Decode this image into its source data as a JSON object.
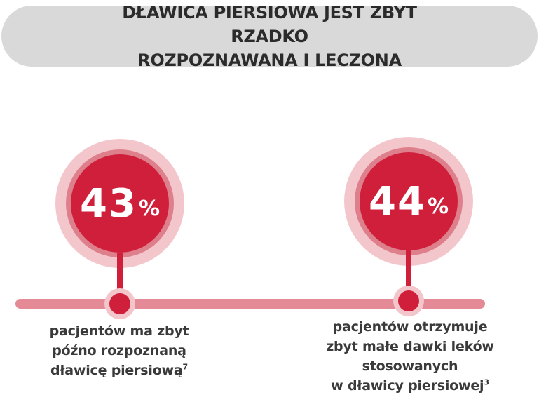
{
  "title": {
    "line1": "DŁAWICA PIERSIOWA JEST ZBYT RZADKO",
    "line2": "ROZPOZNAWANA I LECZONA"
  },
  "stats": [
    {
      "value": "43",
      "unit": "%",
      "caption_lines": [
        "pacjentów ma zbyt",
        "późno rozpoznaną",
        "dławicę piersiową"
      ],
      "footnote": "7"
    },
    {
      "value": "44",
      "unit": "%",
      "caption_lines": [
        "pacjentów otrzymuje",
        "zbyt małe dawki leków",
        "stosowanych",
        "w dławicy piersiowej"
      ],
      "footnote": "3"
    }
  ],
  "colors": {
    "accent": "#cf1f3b",
    "halo_light": "#f3c6cc",
    "halo_mid": "#de7f8c",
    "bar": "#e48a96",
    "banner": "#d9d9d9"
  }
}
